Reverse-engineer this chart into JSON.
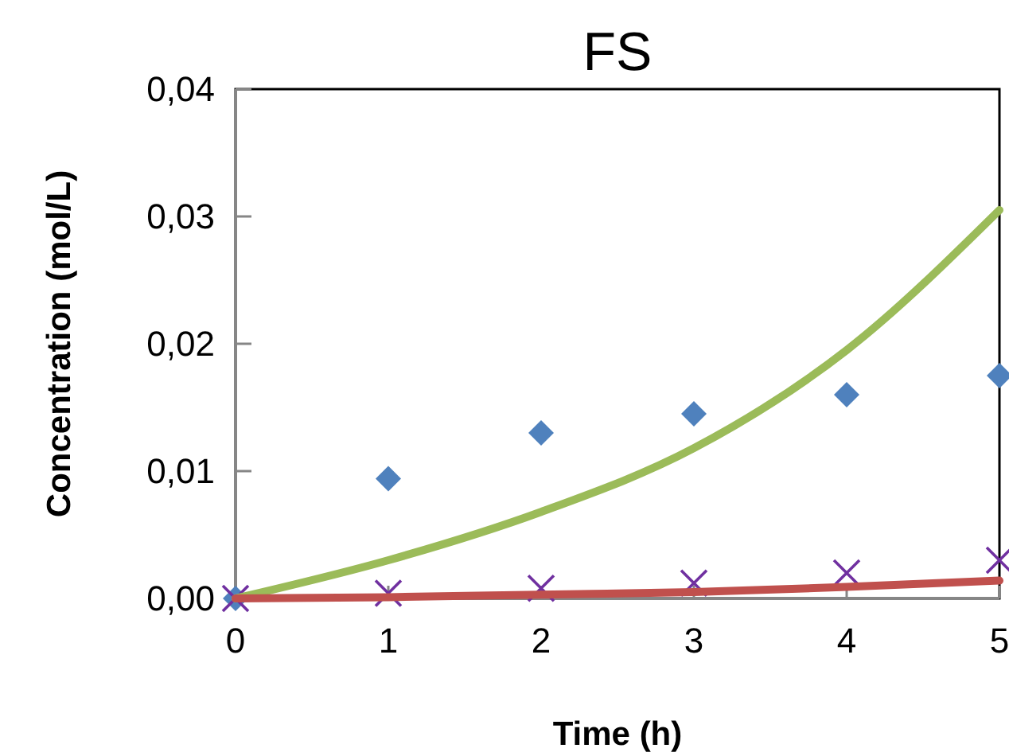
{
  "chart_data": {
    "type": "scatter",
    "title": "FS",
    "xlabel": "Time (h)",
    "ylabel": "Concentration (mol/L)",
    "x": [
      0,
      1,
      2,
      3,
      4,
      5
    ],
    "xlim": [
      0,
      5
    ],
    "xticks": [
      0,
      1,
      2,
      3,
      4,
      5
    ],
    "ylim": [
      0,
      0.04
    ],
    "yticks": [
      {
        "value": 0,
        "label": "0,00"
      },
      {
        "value": 0.01,
        "label": "0,01"
      },
      {
        "value": 0.02,
        "label": "0,02"
      },
      {
        "value": 0.03,
        "label": "0,03"
      },
      {
        "value": 0.04,
        "label": "0,04"
      }
    ],
    "grid": false,
    "series": [
      {
        "marker": "diamond",
        "color": "#4f81bd",
        "values": [
          0,
          0.0094,
          0.013,
          0.0145,
          0.016,
          0.0175
        ]
      },
      {
        "marker": "cross",
        "color": "#7030a0",
        "values": [
          0,
          0.0004,
          0.0008,
          0.0012,
          0.002,
          0.003
        ]
      },
      {
        "type": "line",
        "marker": "none",
        "color": "#9bbb59",
        "values": [
          0,
          0.003,
          0.0068,
          0.0118,
          0.0195,
          0.0305
        ]
      },
      {
        "type": "line",
        "marker": "none",
        "color": "#c0504d",
        "values": [
          0,
          0.0001,
          0.0003,
          0.0005,
          0.0009,
          0.0014
        ]
      }
    ]
  }
}
